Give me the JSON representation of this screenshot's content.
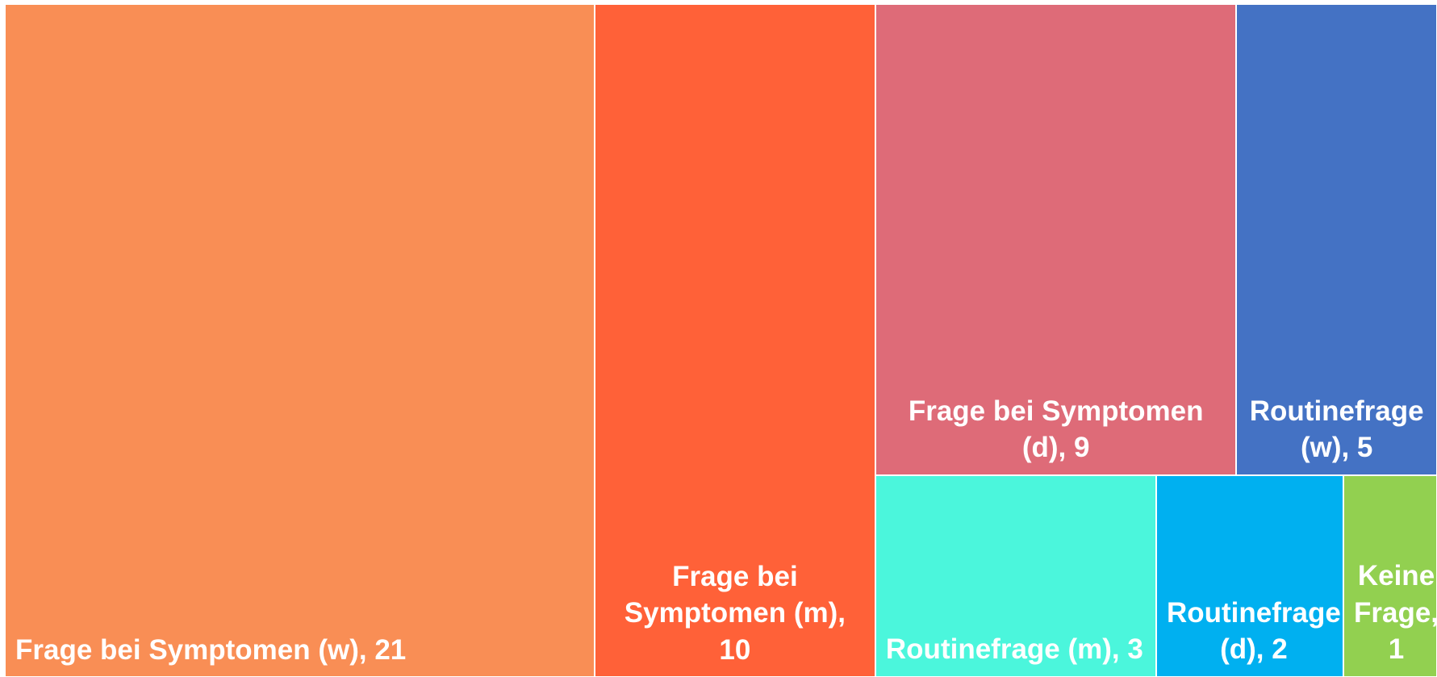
{
  "chart_data": {
    "type": "treemap",
    "labels": [
      "Frage bei Symptomen (w), 21",
      "Frage bei Symptomen (m), 10",
      "Frage bei Symptomen (d), 9",
      "Routinefrage (w), 5",
      "Routinefrage (m), 3",
      "Routinefrage (d), 2",
      "Keine Frage, 1"
    ],
    "values": [
      21,
      10,
      9,
      5,
      3,
      2,
      1
    ],
    "colors": [
      "#f98e55",
      "#ff6138",
      "#de6b78",
      "#4472c4",
      "#4bf6dc",
      "#00b0f0",
      "#92d050"
    ]
  }
}
